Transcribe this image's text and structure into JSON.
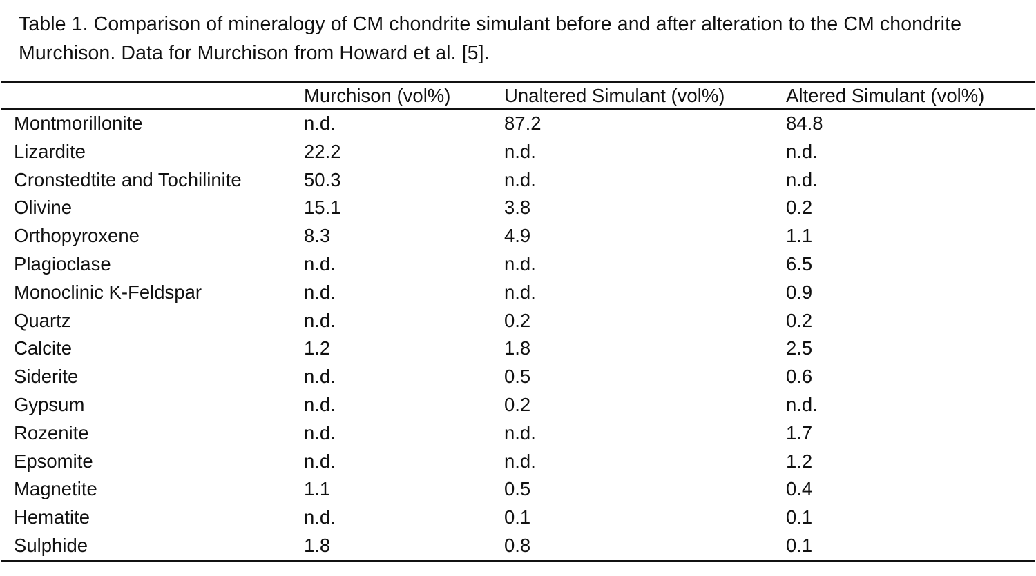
{
  "caption": "Table 1. Comparison of mineralogy of CM chondrite simulant before and after alteration to the CM chondrite Murchison. Data for Murchison from Howard et al. [5].",
  "table": {
    "headers": [
      "",
      "Murchison (vol%)",
      "Unaltered Simulant (vol%)",
      "Altered Simulant (vol%)"
    ],
    "rows": [
      [
        "Montmorillonite",
        "n.d.",
        "87.2",
        "84.8"
      ],
      [
        "Lizardite",
        "22.2",
        "n.d.",
        "n.d."
      ],
      [
        "Cronstedtite and Tochilinite",
        "50.3",
        "n.d.",
        "n.d."
      ],
      [
        "Olivine",
        "15.1",
        "3.8",
        "0.2"
      ],
      [
        "Orthopyroxene",
        "8.3",
        "4.9",
        "1.1"
      ],
      [
        "Plagioclase",
        "n.d.",
        "n.d.",
        "6.5"
      ],
      [
        "Monoclinic K-Feldspar",
        "n.d.",
        "n.d.",
        "0.9"
      ],
      [
        "Quartz",
        "n.d.",
        "0.2",
        "0.2"
      ],
      [
        "Calcite",
        "1.2",
        "1.8",
        "2.5"
      ],
      [
        "Siderite",
        "n.d.",
        "0.5",
        "0.6"
      ],
      [
        "Gypsum",
        "n.d.",
        "0.2",
        "n.d."
      ],
      [
        "Rozenite",
        "n.d.",
        "n.d.",
        "1.7"
      ],
      [
        "Epsomite",
        "n.d.",
        "n.d.",
        "1.2"
      ],
      [
        "Magnetite",
        "1.1",
        "0.5",
        "0.4"
      ],
      [
        "Hematite",
        "n.d.",
        "0.1",
        "0.1"
      ],
      [
        "Sulphide",
        "1.8",
        "0.8",
        "0.1"
      ]
    ]
  }
}
